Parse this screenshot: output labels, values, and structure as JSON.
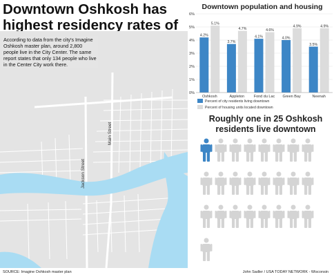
{
  "headline": "Downtown Oshkosh has highest residency rates of the Fox Valley",
  "intro_text": "According to data from the city's Imagine Oshkosh master plan, around 2,800 people live in the City Center. The same report states that only 134 people who live in the Center City work there.",
  "map": {
    "street_labels": [
      "Jackson Street",
      "Main Street"
    ],
    "colors": {
      "land": "#e4e4e4",
      "water": "#a9dcf3",
      "roads": "#ffffff"
    }
  },
  "source": "SOURCE: Imagine Oshkosh master plan",
  "credit": "John Sadler / USA TODAY NETWORK - Wisconsin",
  "chart_data": {
    "type": "bar",
    "title": "Downtown population and housing",
    "categories": [
      "Oshkosh",
      "Appleton",
      "Fond du Lac",
      "Green Bay",
      "Neenah"
    ],
    "series": [
      {
        "name": "Percent of city residents living downtown",
        "values": [
          4.2,
          3.7,
          4.1,
          4.0,
          3.5
        ],
        "labels": [
          "4.2%",
          "3.7%",
          "4.1%",
          "4.0%",
          "3.5%"
        ],
        "color": "#3d86c6"
      },
      {
        "name": "Percent of housing units located downtown",
        "values": [
          5.1,
          4.7,
          4.6,
          4.9,
          4.9
        ],
        "labels": [
          "5.1%",
          "4.7%",
          "4.6%",
          "4.9%",
          "4.9%"
        ],
        "color": "#dcdcdc"
      }
    ],
    "yticks": [
      "0%",
      "1%",
      "2%",
      "3%",
      "4%",
      "5%",
      "6%"
    ],
    "ylim": [
      0,
      6
    ],
    "grid": true,
    "legend_position": "bottom"
  },
  "pictogram": {
    "title": "Roughly one in 25 Oshkosh residents live downtown",
    "total": 25,
    "highlighted": 1,
    "per_row": 8,
    "colors": {
      "highlight": "#3d86c6",
      "other": "#d4d4d4"
    }
  }
}
